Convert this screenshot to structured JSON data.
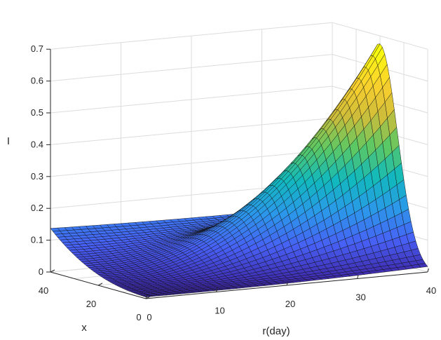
{
  "chart_data": {
    "type": "surface",
    "title": "",
    "xlabel": "r(day)",
    "ylabel": "x",
    "zlabel": "I",
    "xlim": [
      0,
      40
    ],
    "ylim": [
      0,
      40
    ],
    "zlim": [
      0,
      0.7
    ],
    "x_ticks": [
      "0",
      "10",
      "20",
      "30",
      "40"
    ],
    "y_ticks": [
      "0",
      "20",
      "40"
    ],
    "z_ticks": [
      "0",
      "0.1",
      "0.2",
      "0.3",
      "0.4",
      "0.5",
      "0.6",
      "0.7"
    ],
    "grid": true,
    "colormap": "parula",
    "colormap_stops": [
      "#3e26a8",
      "#4760f5",
      "#2b98ea",
      "#11b9bd",
      "#5cc863",
      "#cfbd3a",
      "#fbd12d",
      "#f9fb0e"
    ],
    "corner_values": {
      "r0_x0": 0.0,
      "r40_x0": 0.0,
      "r0_x40": 0.12,
      "r40_x40": 0.1,
      "peak": {
        "r": 40,
        "x": 20,
        "I": 0.65
      }
    },
    "series": [
      {
        "r": [
          0,
          10,
          20,
          30,
          40
        ],
        "x_at_0": [
          0.0,
          0.0,
          0.0,
          0.0,
          0.0
        ],
        "x_at_20": [
          0.01,
          0.02,
          0.06,
          0.28,
          0.65
        ],
        "x_at_40": [
          0.12,
          0.11,
          0.1,
          0.09,
          0.1
        ]
      }
    ]
  }
}
